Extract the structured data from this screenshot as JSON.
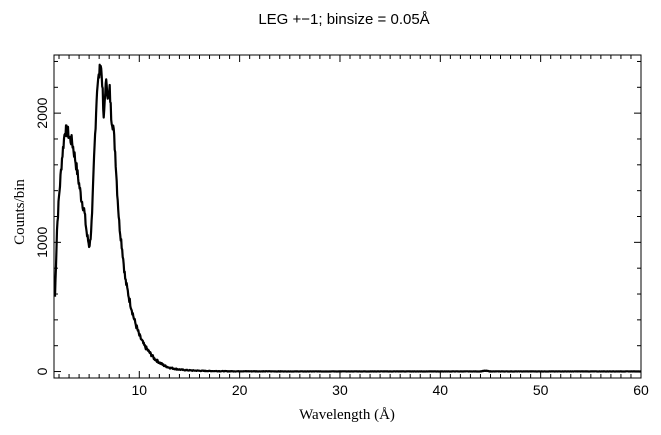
{
  "chart_data": {
    "type": "line",
    "title": "LEG +−1; binsize = 0.05Å",
    "xlabel": "Wavelength (Å)",
    "ylabel": "Counts/bin",
    "xlim": [
      1.5,
      60
    ],
    "ylim": [
      -50,
      2450
    ],
    "xticks": [
      10,
      20,
      30,
      40,
      50,
      60
    ],
    "yticks": [
      0,
      1000,
      2000
    ],
    "xtick_labels": [
      "10",
      "20",
      "30",
      "40",
      "50",
      "60"
    ],
    "ytick_labels": [
      "0",
      "1000",
      "2000"
    ],
    "grid": false,
    "color": "#000000",
    "series": [
      {
        "x": [
          1.6,
          1.8,
          2.0,
          2.3,
          2.6,
          2.9,
          3.1,
          3.3,
          3.6,
          3.9,
          4.2,
          4.5,
          4.8,
          5.0,
          5.1,
          5.3,
          5.5,
          5.8,
          6.0,
          6.15,
          6.3,
          6.45,
          6.6,
          6.75,
          6.9,
          7.05,
          7.2,
          7.4,
          7.6,
          7.8,
          8.0,
          8.3,
          8.6,
          9.0,
          9.5,
          10.0,
          10.5,
          11.0,
          11.5,
          12.0,
          12.5,
          13.0,
          13.5,
          14.0,
          14.5,
          15.0,
          16.0,
          17.0,
          18.0,
          19.0,
          20.0,
          25.0,
          30.0,
          35.0,
          40.0,
          44.0,
          44.5,
          45.0,
          50.0,
          55.0,
          60.0
        ],
        "y": [
          580,
          1100,
          1350,
          1650,
          1870,
          1850,
          1800,
          1780,
          1650,
          1500,
          1350,
          1250,
          1050,
          980,
          1000,
          1200,
          1650,
          2200,
          2300,
          2380,
          2250,
          1930,
          2180,
          2240,
          2100,
          2180,
          1980,
          1900,
          1700,
          1400,
          1150,
          950,
          720,
          560,
          400,
          280,
          200,
          150,
          100,
          70,
          45,
          30,
          22,
          16,
          12,
          9,
          6,
          4,
          3,
          2,
          2,
          1,
          1,
          1,
          1,
          1,
          6,
          1,
          1,
          1,
          1
        ]
      }
    ]
  }
}
